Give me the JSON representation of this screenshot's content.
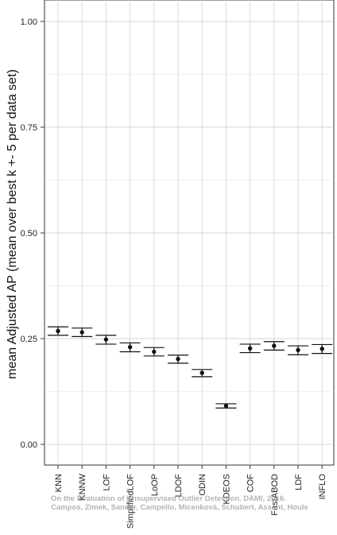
{
  "chart_data": {
    "type": "scatter",
    "title": "",
    "xlabel": "",
    "ylabel": "mean Adjusted AP (mean over best k +- 5 per data set)",
    "ylim": [
      0,
      1
    ],
    "yticks": [
      "0.00",
      "0.25",
      "0.50",
      "0.75",
      "1.00"
    ],
    "grid": true,
    "categories": [
      "KNN",
      "KNNW",
      "LOF",
      "SimplifiedLOF",
      "LoOP",
      "LDOF",
      "ODIN",
      "KDEOS",
      "COF",
      "FastABOD",
      "LDF",
      "INFLO"
    ],
    "series": [
      {
        "values": [
          0.268,
          0.265,
          0.248,
          0.23,
          0.219,
          0.202,
          0.169,
          0.091,
          0.227,
          0.233,
          0.223,
          0.226
        ],
        "lower": [
          0.258,
          0.255,
          0.237,
          0.219,
          0.209,
          0.192,
          0.16,
          0.086,
          0.217,
          0.223,
          0.212,
          0.215
        ],
        "upper": [
          0.278,
          0.275,
          0.258,
          0.24,
          0.229,
          0.211,
          0.177,
          0.096,
          0.237,
          0.243,
          0.233,
          0.236
        ]
      }
    ]
  },
  "watermark": {
    "line1": "On the Evaluation of Unsupervised Outlier Detection. DAMI, 2016.",
    "line2": "Campos, Zimek, Sander, Campello, Micenková, Schubert, Assent, Houle"
  }
}
